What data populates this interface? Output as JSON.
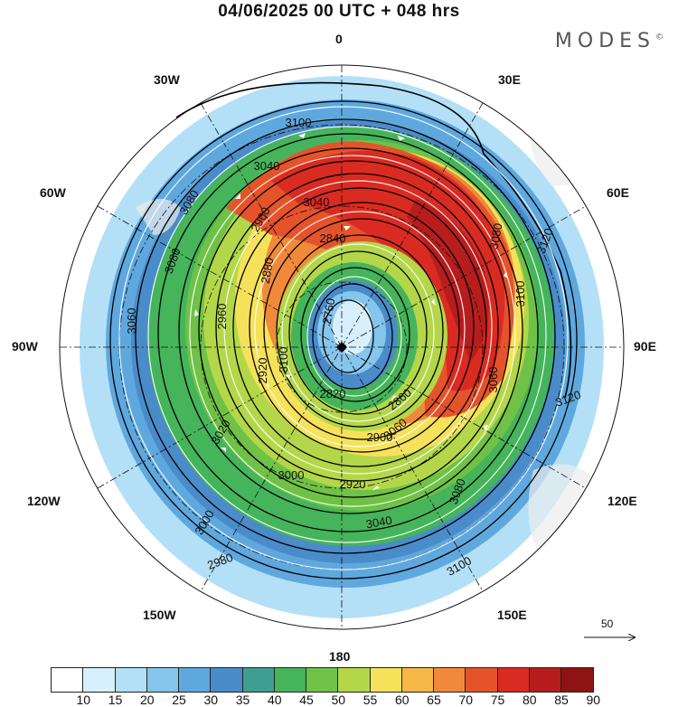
{
  "header": {
    "title": "04/06/2025  00 UTC  + 048 hrs",
    "brand": "MODES",
    "brand_mark": "©"
  },
  "longitude_labels": [
    "0",
    "30E",
    "60E",
    "90E",
    "120E",
    "150E",
    "180",
    "150W",
    "120W",
    "90W",
    "60W",
    "30W"
  ],
  "contour_labels": [
    "3100",
    "3040",
    "3080",
    "3040",
    "2960",
    "2840",
    "2880",
    "2760",
    "2820",
    "2860",
    "2900",
    "2920",
    "2960",
    "3000",
    "3040",
    "3080",
    "3100",
    "3120",
    "3120",
    "3080",
    "3060",
    "3060",
    "3100",
    "3020",
    "3000",
    "2980",
    "2920",
    "3060",
    "3080",
    "3100"
  ],
  "wind_scale": {
    "label": "50"
  },
  "colorbar": {
    "labels": [
      "10",
      "15",
      "20",
      "25",
      "30",
      "35",
      "40",
      "45",
      "50",
      "55",
      "60",
      "65",
      "70",
      "75",
      "80",
      "85",
      "90"
    ],
    "colors": [
      "#ffffff",
      "#d8f0fc",
      "#b3e0f7",
      "#86c5ec",
      "#5fa8de",
      "#4a8cc9",
      "#3f9e92",
      "#45b45a",
      "#6fc247",
      "#b4d74a",
      "#f6e25a",
      "#f5b847",
      "#f08a3a",
      "#e5532b",
      "#d92b22",
      "#b71d1d",
      "#8e1414"
    ]
  },
  "colors": {
    "land": "#ececec",
    "contour": "#000000",
    "vector": "#ffffff"
  }
}
